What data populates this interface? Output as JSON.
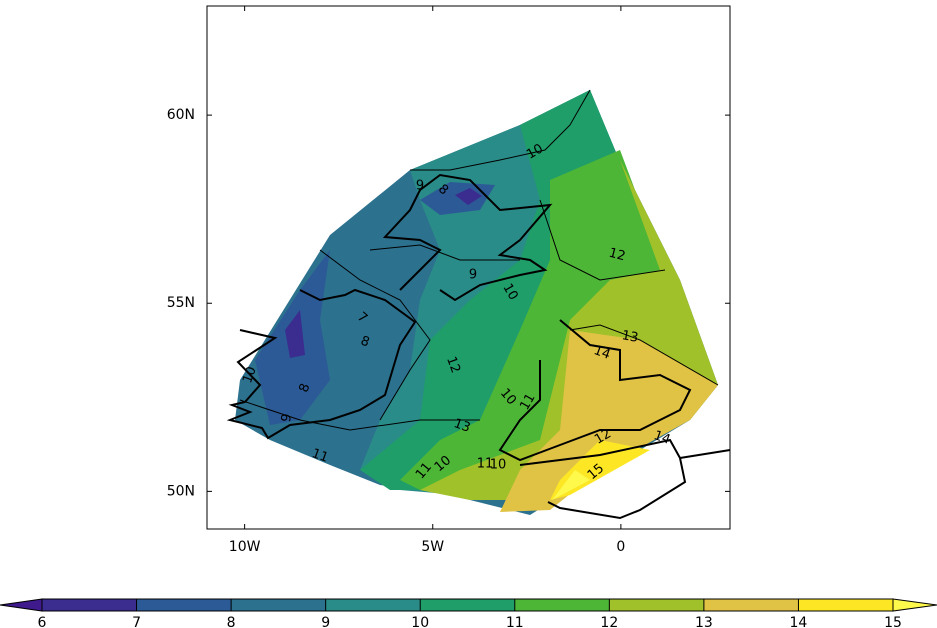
{
  "map": {
    "xlim": [
      -11,
      2.9
    ],
    "ylim": [
      49,
      62.9
    ],
    "xticks": [
      {
        "value": -10,
        "label": "10W"
      },
      {
        "value": -5,
        "label": "5W"
      },
      {
        "value": 0,
        "label": "0"
      }
    ],
    "yticks": [
      {
        "value": 50,
        "label": "50N"
      },
      {
        "value": 55,
        "label": "55N"
      },
      {
        "value": 60,
        "label": "60N"
      }
    ],
    "contour_labels": [
      "10",
      "12",
      "13",
      "9",
      "8",
      "9",
      "10",
      "7",
      "8",
      "8",
      "9",
      "10",
      "11",
      "12",
      "13",
      "10",
      "11",
      "10",
      "11",
      "11",
      "10",
      "14",
      "15",
      "14",
      "12"
    ]
  },
  "colorbar": {
    "levels": [
      6,
      7,
      8,
      9,
      10,
      11,
      12,
      13,
      14,
      15
    ],
    "colors": [
      "#3b2c8f",
      "#2c5a96",
      "#2c718e",
      "#2a8c88",
      "#1f9e69",
      "#4db637",
      "#a1c12a",
      "#e0c244",
      "#fde725"
    ],
    "under_color": "#3e1a8c",
    "over_color": "#fff94c"
  }
}
